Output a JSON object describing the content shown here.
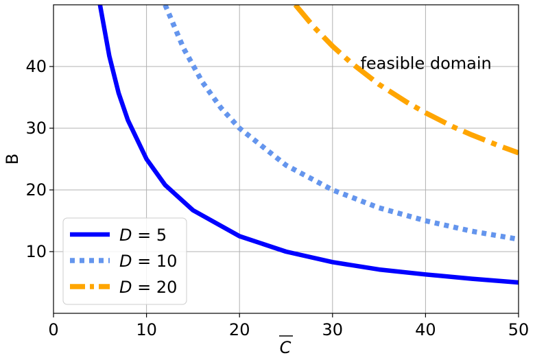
{
  "chart_data": {
    "type": "line",
    "xlabel": "C",
    "ylabel": "B",
    "xlim": [
      0,
      50
    ],
    "ylim": [
      0,
      50
    ],
    "xticks": [
      0,
      10,
      20,
      30,
      40,
      50
    ],
    "yticks": [
      10,
      20,
      30,
      40
    ],
    "grid": true,
    "legend_position": "bottom-left",
    "annotation": {
      "text": "feasible domain",
      "x": 33,
      "y": 40.5
    },
    "series": [
      {
        "name_var": "D",
        "name_eq": " = ",
        "name_val": "5",
        "color": "#0000ff",
        "style": "solid",
        "x": [
          5.0,
          6,
          7,
          8,
          10,
          12,
          15,
          20,
          25,
          30,
          35,
          40,
          45,
          50
        ],
        "y": [
          50.0,
          41.7,
          35.7,
          31.3,
          25.0,
          20.8,
          16.7,
          12.5,
          10.0,
          8.3,
          7.1,
          6.3,
          5.6,
          5.0
        ]
      },
      {
        "name_var": "D",
        "name_eq": " = ",
        "name_val": "10",
        "color": "#6495ed",
        "style": "dotted",
        "x": [
          12.0,
          14,
          16,
          18,
          20,
          25,
          30,
          35,
          40,
          45,
          50
        ],
        "y": [
          50.0,
          42.9,
          37.5,
          33.3,
          30.0,
          24.0,
          20.0,
          17.1,
          15.0,
          13.3,
          12.0
        ]
      },
      {
        "name_var": "D",
        "name_eq": " = ",
        "name_val": "20",
        "color": "#ffa500",
        "style": "dashdot",
        "x": [
          26.0,
          28,
          30,
          32,
          35,
          38,
          40,
          43,
          45,
          48,
          50
        ],
        "y": [
          50.0,
          46.4,
          43.3,
          40.6,
          37.1,
          34.2,
          32.5,
          30.2,
          28.9,
          27.1,
          26.0
        ]
      }
    ]
  }
}
